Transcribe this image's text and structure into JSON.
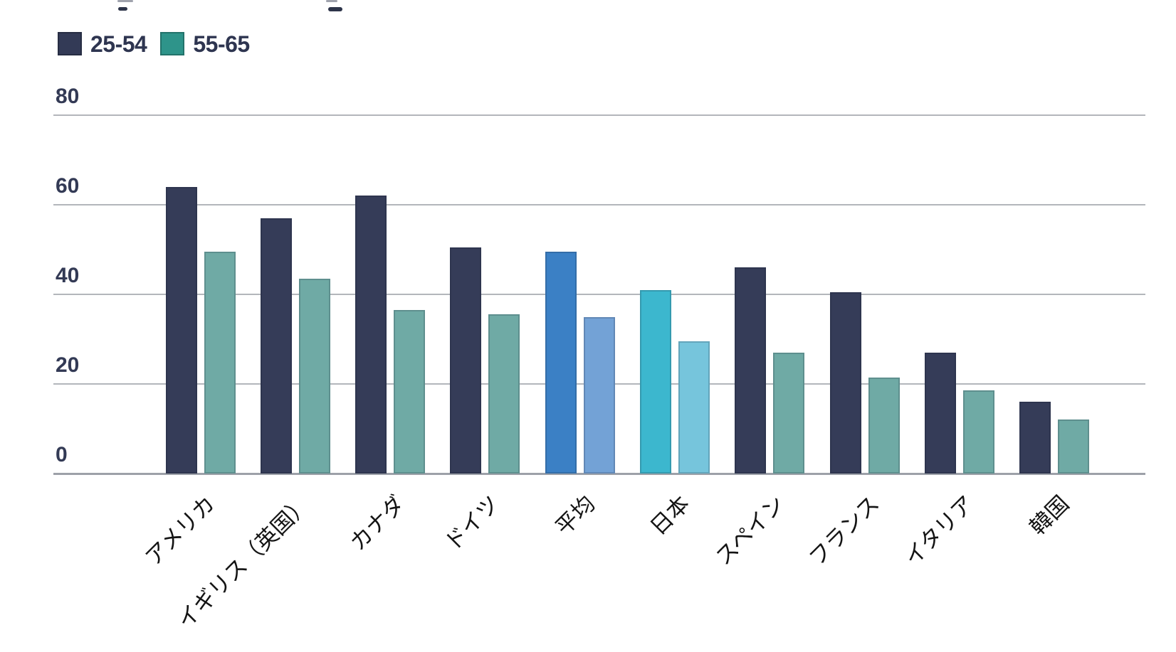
{
  "legend": {
    "items": [
      {
        "label": "25-54",
        "color": "#333a56"
      },
      {
        "label": "55-65",
        "color": "#2e948a"
      }
    ]
  },
  "chart_data": {
    "type": "bar",
    "categories": [
      "アメリカ",
      "イギリス（英国）",
      "カナダ",
      "ドイツ",
      "平均",
      "日本",
      "スペイン",
      "フランス",
      "イタリア",
      "韓国"
    ],
    "series": [
      {
        "name": "25-54",
        "values": [
          64,
          57,
          62,
          50.5,
          49.5,
          41,
          46,
          40.5,
          27,
          16
        ],
        "colors": [
          "#353c58",
          "#353c58",
          "#353c58",
          "#353c58",
          "#3b80c5",
          "#3cb7ce",
          "#353c58",
          "#353c58",
          "#353c58",
          "#353c58"
        ]
      },
      {
        "name": "55-65",
        "values": [
          49.5,
          43.5,
          36.5,
          35.5,
          35,
          29.5,
          27,
          21.5,
          18.5,
          12
        ],
        "colors": [
          "#6faaa5",
          "#6faaa5",
          "#6faaa5",
          "#6faaa5",
          "#73a2d6",
          "#76c5dc",
          "#6faaa5",
          "#6faaa5",
          "#6faaa5",
          "#6faaa5"
        ]
      }
    ],
    "ylim": [
      0,
      80
    ],
    "yticks": [
      0,
      20,
      40,
      60,
      80
    ],
    "grid": true,
    "legend_position": "top-left",
    "highlighted_categories": {
      "平均": "blue",
      "日本": "cyan"
    },
    "colors": {
      "grid": "#b3b6bb",
      "axis": "#9da1a8",
      "tick_label": "#333a55",
      "x_label": "#141414"
    }
  }
}
